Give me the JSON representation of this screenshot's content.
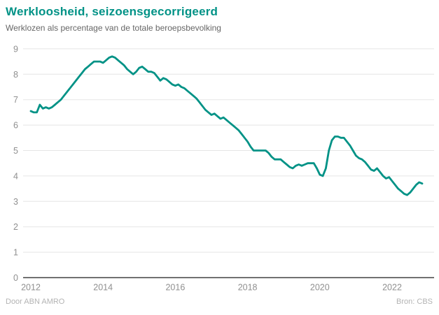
{
  "header": {
    "title": "Werkloosheid, seizoensgecorrigeerd",
    "subtitle": "Werklozen als percentage van de totale beroepsbevolking"
  },
  "footer": {
    "left": "Door ABN AMRO",
    "right": "Bron: CBS"
  },
  "colors": {
    "accent": "#009286",
    "title": "#009286",
    "subtitle": "#666666",
    "axis_label": "#8f8f8f",
    "gridline": "#e5e5e5",
    "axis_line": "#3f3f3f",
    "footer": "#b3b3b3",
    "background": "#ffffff"
  },
  "chart_data": {
    "type": "line",
    "title": "Werkloosheid, seizoensgecorrigeerd",
    "subtitle": "Werklozen als percentage van de totale beroepsbevolking",
    "series_name": "Werkloosheidspercentage",
    "frequency": "monthly",
    "x_start": "2012-01",
    "x_end": "2022-11",
    "xlabel": "",
    "ylabel": "",
    "ylim": [
      0,
      9
    ],
    "grid": "horizontal",
    "legend": "none",
    "line_color": "#009286",
    "x_tick_years": [
      "2012",
      "2014",
      "2016",
      "2018",
      "2020",
      "2022"
    ],
    "y_ticks": [
      0,
      1,
      2,
      3,
      4,
      5,
      6,
      7,
      8,
      9
    ],
    "values": [
      6.55,
      6.5,
      6.5,
      6.8,
      6.65,
      6.7,
      6.65,
      6.7,
      6.8,
      6.9,
      7.0,
      7.15,
      7.3,
      7.45,
      7.6,
      7.75,
      7.9,
      8.05,
      8.2,
      8.3,
      8.4,
      8.5,
      8.5,
      8.5,
      8.45,
      8.55,
      8.65,
      8.7,
      8.65,
      8.55,
      8.45,
      8.35,
      8.2,
      8.1,
      8.0,
      8.1,
      8.25,
      8.3,
      8.2,
      8.1,
      8.1,
      8.05,
      7.9,
      7.75,
      7.85,
      7.8,
      7.7,
      7.6,
      7.55,
      7.6,
      7.5,
      7.45,
      7.35,
      7.25,
      7.15,
      7.05,
      6.9,
      6.75,
      6.6,
      6.5,
      6.4,
      6.45,
      6.35,
      6.25,
      6.3,
      6.2,
      6.1,
      6.0,
      5.9,
      5.8,
      5.65,
      5.5,
      5.35,
      5.15,
      5.0,
      5.0,
      5.0,
      5.0,
      5.0,
      4.9,
      4.75,
      4.65,
      4.65,
      4.65,
      4.55,
      4.45,
      4.35,
      4.3,
      4.4,
      4.45,
      4.4,
      4.45,
      4.5,
      4.5,
      4.5,
      4.3,
      4.05,
      4.0,
      4.3,
      5.0,
      5.4,
      5.55,
      5.55,
      5.5,
      5.5,
      5.35,
      5.2,
      5.0,
      4.8,
      4.7,
      4.65,
      4.55,
      4.4,
      4.25,
      4.2,
      4.3,
      4.15,
      4.0,
      3.9,
      3.95,
      3.8,
      3.65,
      3.5,
      3.4,
      3.3,
      3.25,
      3.35,
      3.5,
      3.65,
      3.75,
      3.7
    ]
  }
}
